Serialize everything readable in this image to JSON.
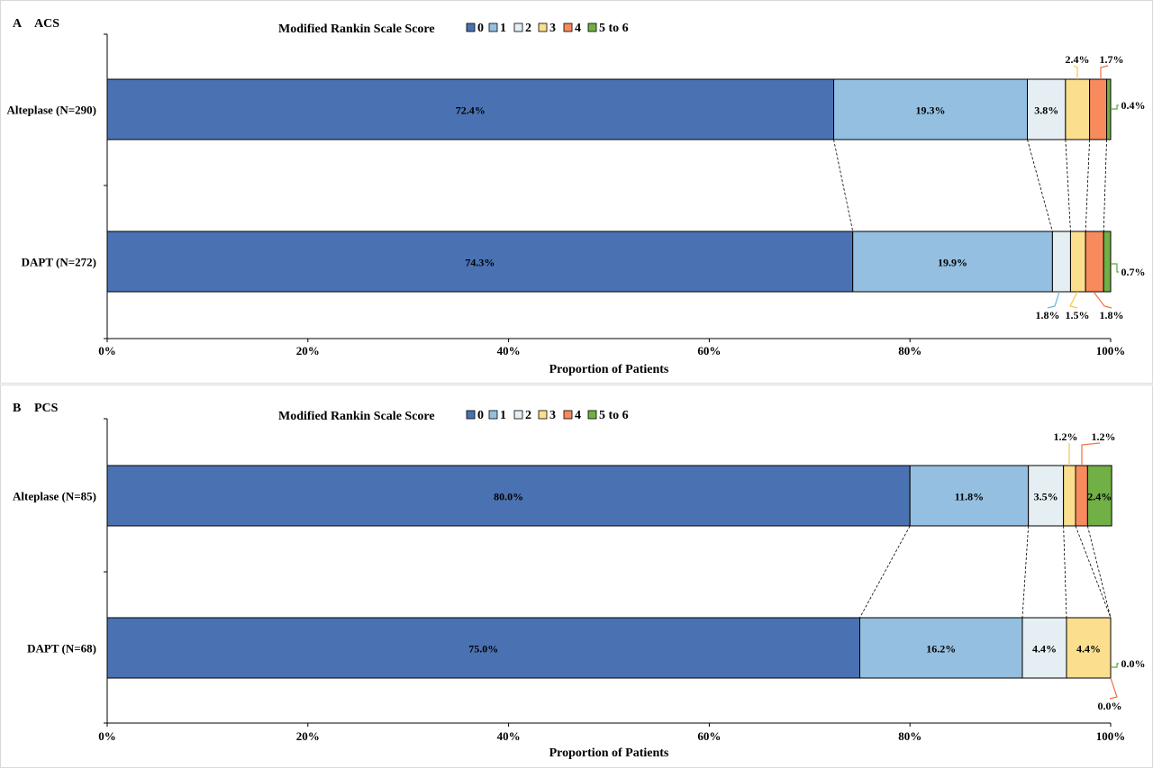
{
  "legend": {
    "title": "Modified Rankin Scale Score",
    "categories": [
      "0",
      "1",
      "2",
      "3",
      "4",
      "5 to 6"
    ],
    "colors": [
      "#4a72b2",
      "#94bfe0",
      "#e5eff3",
      "#fbdf8f",
      "#f78b5e",
      "#70b045"
    ]
  },
  "axis": {
    "xlabel": "Proportion of Patients",
    "ticks": [
      "0%",
      "20%",
      "40%",
      "60%",
      "80%",
      "100%"
    ],
    "xlim": [
      0,
      100
    ]
  },
  "chart_data": [
    {
      "type": "bar",
      "stacked": "100%",
      "panel": "A",
      "title": "ACS",
      "categories": [
        "Alteplase (N=290)",
        "DAPT (N=272)"
      ],
      "series": [
        {
          "name": "0",
          "values": [
            72.4,
            74.3
          ],
          "labels": [
            "72.4%",
            "74.3%"
          ]
        },
        {
          "name": "1",
          "values": [
            19.3,
            19.9
          ],
          "labels": [
            "19.3%",
            "19.9%"
          ]
        },
        {
          "name": "2",
          "values": [
            3.8,
            1.8
          ],
          "labels": [
            "3.8%",
            "1.8%"
          ]
        },
        {
          "name": "3",
          "values": [
            2.4,
            1.5
          ],
          "labels": [
            "2.4%",
            "1.5%"
          ]
        },
        {
          "name": "4",
          "values": [
            1.7,
            1.8
          ],
          "labels": [
            "1.7%",
            "1.8%"
          ]
        },
        {
          "name": "5 to 6",
          "values": [
            0.4,
            0.7
          ],
          "labels": [
            "0.4%",
            "0.7%"
          ]
        }
      ],
      "xlabel": "Proportion of Patients",
      "xlim": [
        0,
        100
      ]
    },
    {
      "type": "bar",
      "stacked": "100%",
      "panel": "B",
      "title": "PCS",
      "categories": [
        "Alteplase (N=85)",
        "DAPT (N=68)"
      ],
      "series": [
        {
          "name": "0",
          "values": [
            80.0,
            75.0
          ],
          "labels": [
            "80.0%",
            "75.0%"
          ]
        },
        {
          "name": "1",
          "values": [
            11.8,
            16.2
          ],
          "labels": [
            "11.8%",
            "16.2%"
          ]
        },
        {
          "name": "2",
          "values": [
            3.5,
            4.4
          ],
          "labels": [
            "3.5%",
            "4.4%"
          ]
        },
        {
          "name": "3",
          "values": [
            1.2,
            4.4
          ],
          "labels": [
            "1.2%",
            "4.4%"
          ]
        },
        {
          "name": "4",
          "values": [
            1.2,
            0.0
          ],
          "labels": [
            "1.2%",
            "0.0%"
          ]
        },
        {
          "name": "5 to 6",
          "values": [
            2.4,
            0.0
          ],
          "labels": [
            "2.4%",
            "0.0%"
          ]
        }
      ],
      "xlabel": "Proportion of Patients",
      "xlim": [
        0,
        100
      ]
    }
  ]
}
